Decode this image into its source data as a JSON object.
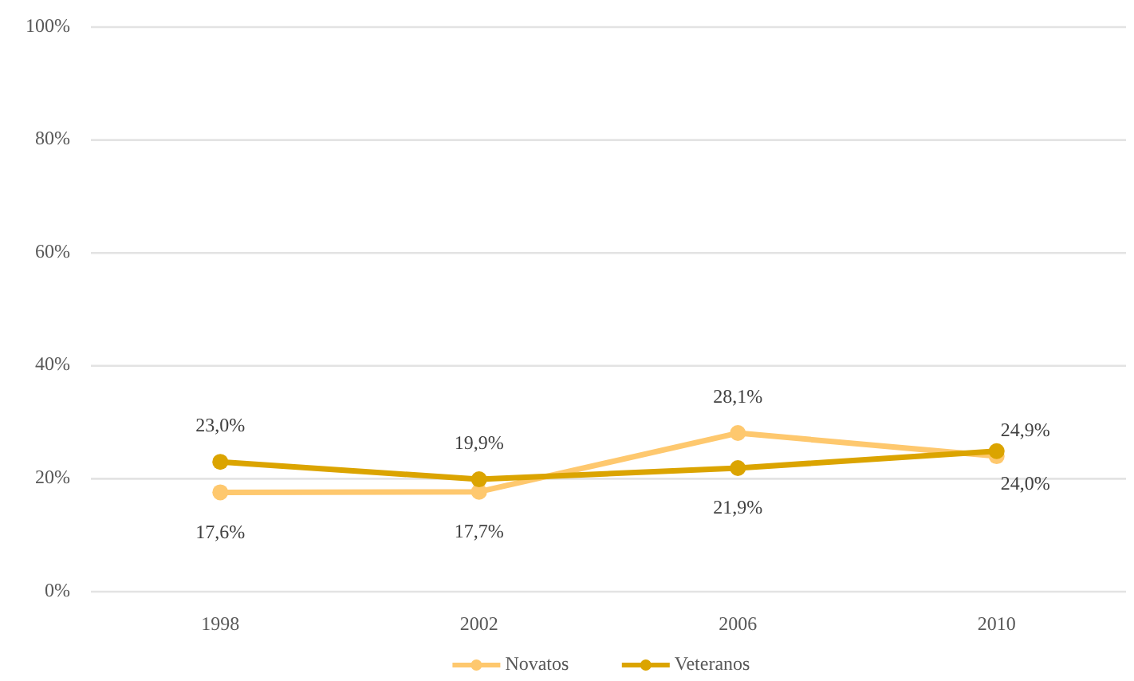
{
  "chart_data": {
    "type": "line",
    "categories": [
      "1998",
      "2002",
      "2006",
      "2010"
    ],
    "series": [
      {
        "name": "Novatos",
        "color": "#fec86e",
        "values": [
          17.6,
          17.7,
          28.1,
          24.0
        ],
        "value_labels": [
          "17,6%",
          "17,7%",
          "28,1%",
          "24,0%"
        ]
      },
      {
        "name": "Veteranos",
        "color": "#dba400",
        "values": [
          23.0,
          19.9,
          21.9,
          24.9
        ],
        "value_labels": [
          "23,0%",
          "19,9%",
          "21,9%",
          "24,9%"
        ]
      }
    ],
    "ylim": [
      0,
      100
    ],
    "yticks": [
      {
        "value": 0,
        "label": "0%"
      },
      {
        "value": 20,
        "label": "20%"
      },
      {
        "value": 40,
        "label": "40%"
      },
      {
        "value": 60,
        "label": "60%"
      },
      {
        "value": 80,
        "label": "80%"
      },
      {
        "value": 100,
        "label": "100%"
      }
    ],
    "grid": "y",
    "legend": "bottom",
    "marker": "circle",
    "line_style": "solid"
  }
}
